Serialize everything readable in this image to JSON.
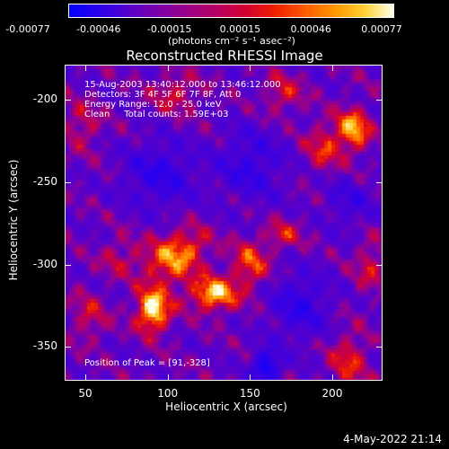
{
  "colorbar": {
    "ticks": [
      "-0.00077",
      "-0.00046",
      "-0.00015",
      "0.00015",
      "0.00046",
      "0.00077"
    ],
    "units": "(photons cm⁻² s⁻¹ asec⁻²)",
    "colormap": [
      "#0000ff",
      "#2a00ee",
      "#5500cc",
      "#7a00aa",
      "#9a0088",
      "#b80060",
      "#d40030",
      "#ee2000",
      "#ff5a00",
      "#ff9500",
      "#ffcf30",
      "#ffffe8"
    ]
  },
  "title": "Reconstructed RHESSI Image",
  "annotations": {
    "time_range": "15-Aug-2003 13:40:12.000 to 13:46:12.000",
    "detectors": "Detectors: 3F 4F 5F 6F 7F 8F, Att 0",
    "energy": "Energy Range: 12.0 - 25.0 keV",
    "method": "Clean     Total counts: 1.59E+03",
    "peak": "Position of Peak = [91,-328]"
  },
  "footer": {
    "timestamp": "4-May-2022 21:14"
  },
  "chart_data": {
    "type": "heatmap",
    "title": "Reconstructed RHESSI Image",
    "xlabel": "Heliocentric X (arcsec)",
    "ylabel": "Heliocentric Y (arcsec)",
    "xlim": [
      38,
      230
    ],
    "ylim": [
      -370,
      -179
    ],
    "xticks": [
      50,
      100,
      150,
      200
    ],
    "yticks": [
      -200,
      -250,
      -300,
      -350
    ],
    "colorbar_range": [
      -0.00077,
      0.00077
    ],
    "peak_position": [
      91,
      -328
    ],
    "blobs": [
      {
        "x": 91,
        "y": -328,
        "amp": 1.0,
        "sx": 7,
        "sy": 9
      },
      {
        "x": 128,
        "y": -318,
        "amp": 0.85,
        "sx": 10,
        "sy": 7
      },
      {
        "x": 100,
        "y": -300,
        "amp": 0.55,
        "sx": 12,
        "sy": 10
      },
      {
        "x": 112,
        "y": -288,
        "amp": 0.45,
        "sx": 10,
        "sy": 8
      },
      {
        "x": 150,
        "y": -300,
        "amp": 0.55,
        "sx": 8,
        "sy": 10
      },
      {
        "x": 170,
        "y": -282,
        "amp": 0.4,
        "sx": 8,
        "sy": 6
      },
      {
        "x": 210,
        "y": -358,
        "amp": 0.45,
        "sx": 8,
        "sy": 12
      },
      {
        "x": 223,
        "y": -300,
        "amp": 0.4,
        "sx": 6,
        "sy": 10
      },
      {
        "x": 213,
        "y": -218,
        "amp": 0.75,
        "sx": 7,
        "sy": 9
      },
      {
        "x": 195,
        "y": -228,
        "amp": 0.45,
        "sx": 8,
        "sy": 10
      },
      {
        "x": 170,
        "y": -196,
        "amp": 0.4,
        "sx": 8,
        "sy": 8
      },
      {
        "x": 105,
        "y": -196,
        "amp": 0.4,
        "sx": 10,
        "sy": 8
      },
      {
        "x": 48,
        "y": -215,
        "amp": 0.35,
        "sx": 8,
        "sy": 10
      },
      {
        "x": 52,
        "y": -332,
        "amp": 0.35,
        "sx": 8,
        "sy": 10
      },
      {
        "x": 70,
        "y": -295,
        "amp": 0.3,
        "sx": 8,
        "sy": 8
      },
      {
        "x": 95,
        "y": -245,
        "amp": -0.5,
        "sx": 15,
        "sy": 14
      },
      {
        "x": 150,
        "y": -240,
        "amp": -0.45,
        "sx": 14,
        "sy": 15
      },
      {
        "x": 180,
        "y": -325,
        "amp": -0.5,
        "sx": 12,
        "sy": 14
      },
      {
        "x": 160,
        "y": -362,
        "amp": -0.85,
        "sx": 6,
        "sy": 7
      },
      {
        "x": 210,
        "y": -262,
        "amp": -0.35,
        "sx": 10,
        "sy": 10
      }
    ]
  }
}
